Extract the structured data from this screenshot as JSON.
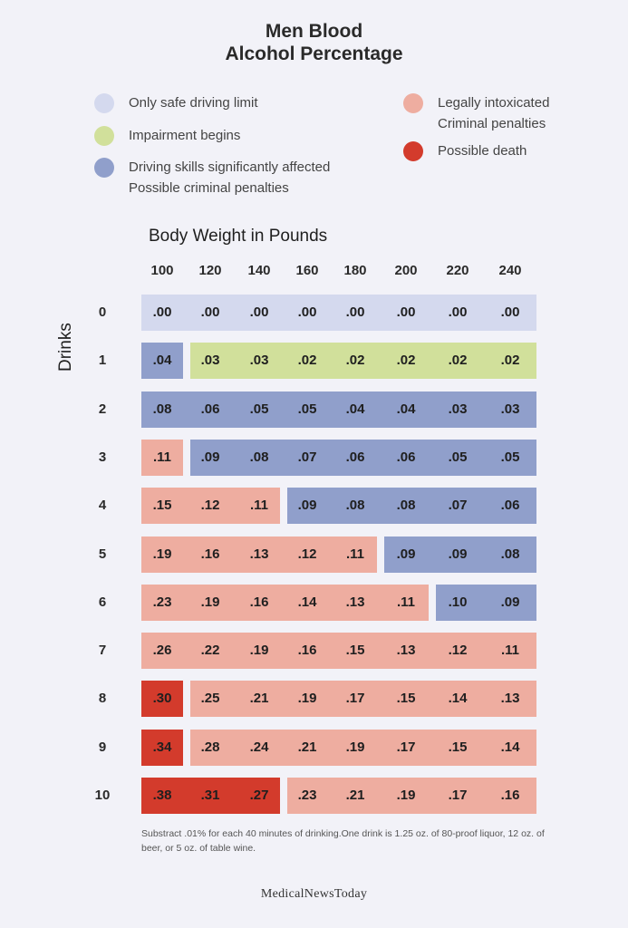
{
  "title_line1": "Men Blood",
  "title_line2": "Alcohol Percentage",
  "legend": [
    {
      "lines": [
        "Only safe driving limit"
      ],
      "color": "#d4d9ee",
      "icon": "safe-limit-dot-icon"
    },
    {
      "lines": [
        "Impairment begins"
      ],
      "color": "#d1e09b",
      "icon": "impairment-dot-icon"
    },
    {
      "lines": [
        "Driving skills significantly affected",
        "Possible criminal penalties"
      ],
      "color": "#909fcb",
      "icon": "driving-affected-dot-icon"
    },
    {
      "lines": [
        "Legally intoxicated",
        "Criminal penalties"
      ],
      "color": "#eeada0",
      "icon": "intoxicated-dot-icon"
    },
    {
      "lines": [
        "Possible death"
      ],
      "color": "#d33b2c",
      "icon": "possible-death-dot-icon"
    }
  ],
  "chart_data": {
    "type": "table",
    "xlabel": "Body Weight in Pounds",
    "ylabel": "Drinks",
    "weights": [
      "100",
      "120",
      "140",
      "160",
      "180",
      "200",
      "220",
      "240"
    ],
    "drinks": [
      "0",
      "1",
      "2",
      "3",
      "4",
      "5",
      "6",
      "7",
      "8",
      "9",
      "10"
    ],
    "values": [
      [
        ".00",
        ".00",
        ".00",
        ".00",
        ".00",
        ".00",
        ".00",
        ".00"
      ],
      [
        ".04",
        ".03",
        ".03",
        ".02",
        ".02",
        ".02",
        ".02",
        ".02"
      ],
      [
        ".08",
        ".06",
        ".05",
        ".05",
        ".04",
        ".04",
        ".03",
        ".03"
      ],
      [
        ".11",
        ".09",
        ".08",
        ".07",
        ".06",
        ".06",
        ".05",
        ".05"
      ],
      [
        ".15",
        ".12",
        ".11",
        ".09",
        ".08",
        ".08",
        ".07",
        ".06"
      ],
      [
        ".19",
        ".16",
        ".13",
        ".12",
        ".11",
        ".09",
        ".09",
        ".08"
      ],
      [
        ".23",
        ".19",
        ".16",
        ".14",
        ".13",
        ".11",
        ".10",
        ".09"
      ],
      [
        ".26",
        ".22",
        ".19",
        ".16",
        ".15",
        ".13",
        ".12",
        ".11"
      ],
      [
        ".30",
        ".25",
        ".21",
        ".19",
        ".17",
        ".15",
        ".14",
        ".13"
      ],
      [
        ".34",
        ".28",
        ".24",
        ".21",
        ".19",
        ".17",
        ".15",
        ".14"
      ],
      [
        ".38",
        ".31",
        ".27",
        ".23",
        ".21",
        ".19",
        ".17",
        ".16"
      ]
    ],
    "levels": [
      [
        0,
        0,
        0,
        0,
        0,
        0,
        0,
        0
      ],
      [
        2,
        1,
        1,
        1,
        1,
        1,
        1,
        1
      ],
      [
        2,
        2,
        2,
        2,
        2,
        2,
        2,
        2
      ],
      [
        3,
        2,
        2,
        2,
        2,
        2,
        2,
        2
      ],
      [
        3,
        3,
        3,
        2,
        2,
        2,
        2,
        2
      ],
      [
        3,
        3,
        3,
        3,
        3,
        2,
        2,
        2
      ],
      [
        3,
        3,
        3,
        3,
        3,
        3,
        2,
        2
      ],
      [
        3,
        3,
        3,
        3,
        3,
        3,
        3,
        3
      ],
      [
        4,
        3,
        3,
        3,
        3,
        3,
        3,
        3
      ],
      [
        4,
        3,
        3,
        3,
        3,
        3,
        3,
        3
      ],
      [
        4,
        4,
        4,
        3,
        3,
        3,
        3,
        3
      ]
    ]
  },
  "footnote": "Substract .01% for each 40 minutes of drinking.One drink is 1.25 oz. of 80-proof liquor, 12 oz. of beer, or 5 oz. of table wine.",
  "logo": "MedicalNewsToday"
}
